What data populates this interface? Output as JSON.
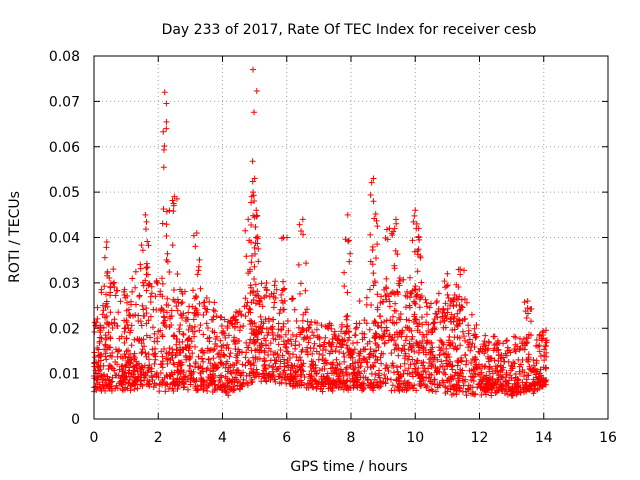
{
  "chart_data": {
    "type": "scatter",
    "title": "Day 233 of 2017, Rate Of TEC Index for receiver cesb",
    "xlabel": "GPS time / hours",
    "ylabel": "ROTI / TECUs",
    "xlim": [
      0,
      16
    ],
    "ylim": [
      0,
      0.08
    ],
    "x_ticks": [
      "0",
      "2",
      "4",
      "6",
      "8",
      "10",
      "12",
      "14",
      "16"
    ],
    "y_ticks": [
      "0",
      "0.01",
      "0.02",
      "0.03",
      "0.04",
      "0.05",
      "0.06",
      "0.07",
      "0.08"
    ],
    "grid": true,
    "marker": "+",
    "colors": {
      "series": "#ff0000",
      "grid": "#a0a0a0",
      "axis": "#000000"
    },
    "series": [
      {
        "name": "ROTI",
        "x_range": [
          0,
          14.1
        ],
        "baseline_envelope": {
          "x": [
            0.0,
            0.5,
            1.0,
            1.6,
            2.0,
            2.3,
            3.0,
            3.6,
            4.2,
            5.0,
            5.5,
            6.0,
            7.0,
            7.8,
            8.7,
            9.3,
            10.0,
            10.5,
            11.3,
            12.0,
            12.6,
            13.2,
            14.1
          ],
          "y_low": [
            0.006,
            0.007,
            0.007,
            0.008,
            0.007,
            0.007,
            0.007,
            0.007,
            0.006,
            0.009,
            0.009,
            0.008,
            0.007,
            0.007,
            0.007,
            0.007,
            0.007,
            0.007,
            0.006,
            0.006,
            0.006,
            0.006,
            0.007
          ],
          "y_high": [
            0.024,
            0.034,
            0.028,
            0.036,
            0.032,
            0.03,
            0.028,
            0.026,
            0.022,
            0.03,
            0.03,
            0.028,
            0.022,
            0.022,
            0.03,
            0.032,
            0.03,
            0.026,
            0.03,
            0.02,
            0.018,
            0.018,
            0.02
          ]
        },
        "peaks": [
          {
            "x": 2.2,
            "y": 0.072
          },
          {
            "x": 2.25,
            "y": 0.064
          },
          {
            "x": 2.5,
            "y": 0.049
          },
          {
            "x": 1.6,
            "y": 0.045
          },
          {
            "x": 0.4,
            "y": 0.039
          },
          {
            "x": 4.95,
            "y": 0.077
          },
          {
            "x": 5.0,
            "y": 0.053
          },
          {
            "x": 4.95,
            "y": 0.05
          },
          {
            "x": 5.05,
            "y": 0.046
          },
          {
            "x": 4.8,
            "y": 0.044
          },
          {
            "x": 3.2,
            "y": 0.041
          },
          {
            "x": 5.9,
            "y": 0.04
          },
          {
            "x": 6.5,
            "y": 0.044
          },
          {
            "x": 7.9,
            "y": 0.045
          },
          {
            "x": 8.7,
            "y": 0.053
          },
          {
            "x": 8.7,
            "y": 0.048
          },
          {
            "x": 9.4,
            "y": 0.044
          },
          {
            "x": 9.2,
            "y": 0.042
          },
          {
            "x": 10.0,
            "y": 0.046
          },
          {
            "x": 10.05,
            "y": 0.043
          },
          {
            "x": 10.1,
            "y": 0.04
          },
          {
            "x": 11.4,
            "y": 0.033
          },
          {
            "x": 11.0,
            "y": 0.032
          },
          {
            "x": 13.5,
            "y": 0.026
          }
        ]
      }
    ]
  }
}
